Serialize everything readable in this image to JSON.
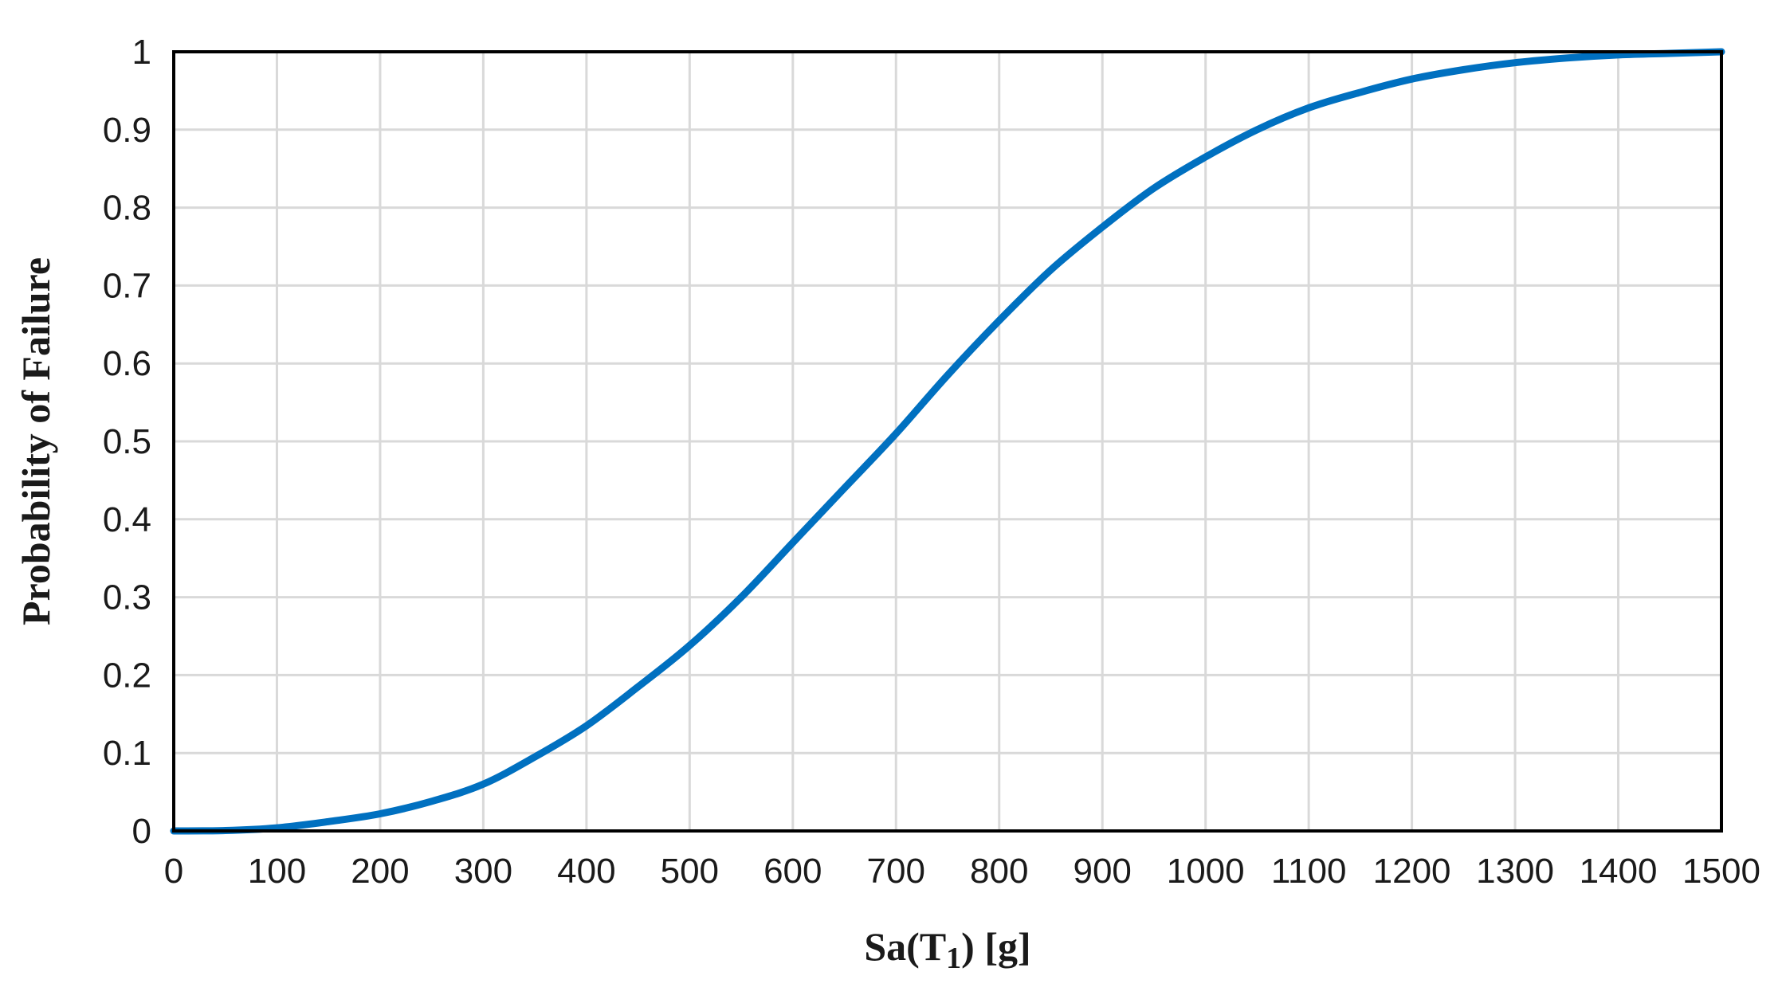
{
  "chart_data": {
    "type": "line",
    "title": "",
    "xlabel": "Sa(T",
    "xlabel_subscript": "1",
    "xlabel_suffix": ") [g]",
    "ylabel": "Probability of Failure",
    "xlim": [
      0,
      1500
    ],
    "ylim": [
      0,
      1
    ],
    "grid": true,
    "legend": "none",
    "x_ticks": [
      "0",
      "100",
      "200",
      "300",
      "400",
      "500",
      "600",
      "700",
      "800",
      "900",
      "1000",
      "1100",
      "1200",
      "1300",
      "1400",
      "1500"
    ],
    "y_ticks": [
      "0",
      "0.1",
      "0.2",
      "0.3",
      "0.4",
      "0.5",
      "0.6",
      "0.7",
      "0.8",
      "0.9",
      "1"
    ],
    "line_color": "#0070c0",
    "grid_color": "#d9d9d9",
    "series": [
      {
        "x": [
          0,
          50,
          100,
          150,
          200,
          250,
          300,
          350,
          400,
          450,
          500,
          550,
          600,
          650,
          700,
          750,
          800,
          850,
          900,
          950,
          1000,
          1050,
          1100,
          1150,
          1200,
          1250,
          1300,
          1350,
          1400,
          1450,
          1500
        ],
        "values": [
          0,
          0.0005,
          0.004,
          0.012,
          0.022,
          0.038,
          0.06,
          0.095,
          0.135,
          0.185,
          0.238,
          0.3,
          0.37,
          0.44,
          0.51,
          0.585,
          0.655,
          0.72,
          0.775,
          0.825,
          0.865,
          0.9,
          0.928,
          0.948,
          0.965,
          0.977,
          0.986,
          0.992,
          0.996,
          0.998,
          1.0
        ]
      }
    ]
  }
}
